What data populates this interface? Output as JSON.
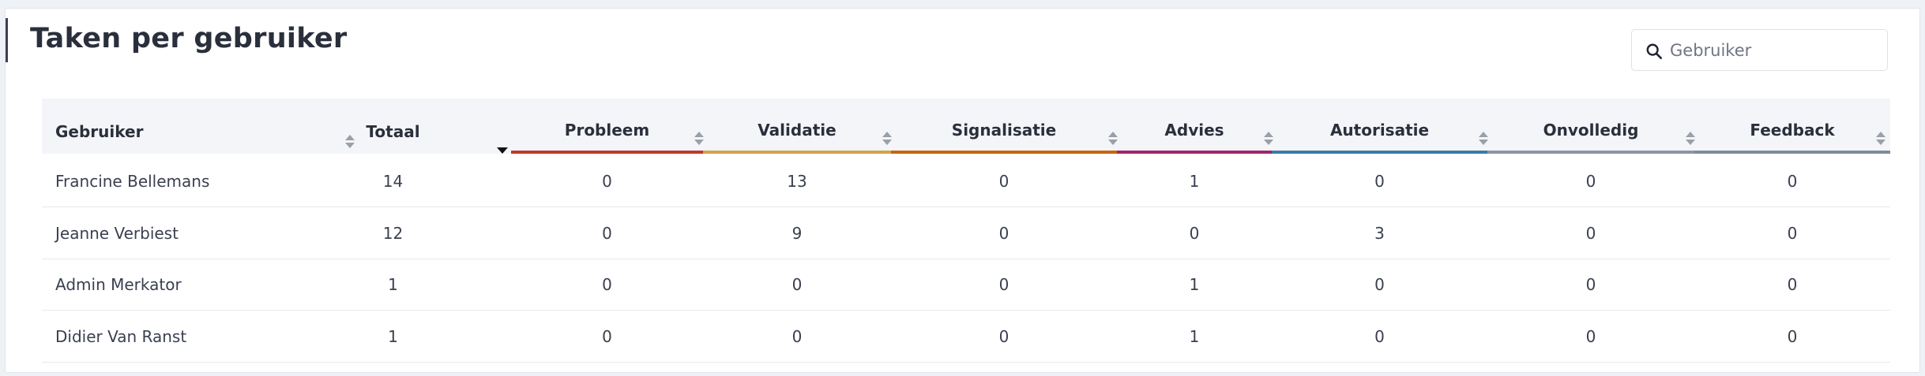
{
  "page": {
    "title": "Taken per gebruiker"
  },
  "search": {
    "placeholder": "Gebruiker",
    "value": "",
    "icon": "search-icon"
  },
  "table": {
    "columns": [
      {
        "key": "gebruiker",
        "label": "Gebruiker",
        "sort": "none"
      },
      {
        "key": "totaal",
        "label": "Totaal",
        "sort": "descending"
      },
      {
        "key": "probleem",
        "label": "Probleem",
        "sort": "none",
        "color": "#c0392b"
      },
      {
        "key": "validatie",
        "label": "Validatie",
        "sort": "none",
        "color": "#d4a24a"
      },
      {
        "key": "signalisatie",
        "label": "Signalisatie",
        "sort": "none",
        "color": "#c8650f"
      },
      {
        "key": "advies",
        "label": "Advies",
        "sort": "none",
        "color": "#a3236d"
      },
      {
        "key": "autorisatie",
        "label": "Autorisatie",
        "sort": "none",
        "color": "#3c7aa8"
      },
      {
        "key": "onvolledig",
        "label": "Onvolledig",
        "sort": "none",
        "color": "#8a96a2"
      },
      {
        "key": "feedback",
        "label": "Feedback",
        "sort": "none",
        "color": "#7e8c9a"
      }
    ],
    "rows": [
      {
        "gebruiker": "Francine Bellemans",
        "totaal": "14",
        "probleem": "0",
        "validatie": "13",
        "signalisatie": "0",
        "advies": "1",
        "autorisatie": "0",
        "onvolledig": "0",
        "feedback": "0"
      },
      {
        "gebruiker": "Jeanne Verbiest",
        "totaal": "12",
        "probleem": "0",
        "validatie": "9",
        "signalisatie": "0",
        "advies": "0",
        "autorisatie": "3",
        "onvolledig": "0",
        "feedback": "0"
      },
      {
        "gebruiker": "Admin Merkator",
        "totaal": "1",
        "probleem": "0",
        "validatie": "0",
        "signalisatie": "0",
        "advies": "1",
        "autorisatie": "0",
        "onvolledig": "0",
        "feedback": "0"
      },
      {
        "gebruiker": "Didier Van Ranst",
        "totaal": "1",
        "probleem": "0",
        "validatie": "0",
        "signalisatie": "0",
        "advies": "1",
        "autorisatie": "0",
        "onvolledig": "0",
        "feedback": "0"
      }
    ]
  }
}
